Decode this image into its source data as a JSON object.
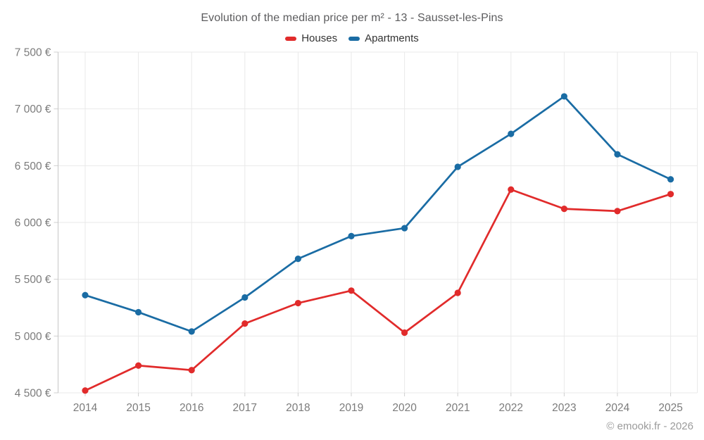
{
  "watermark": "© emooki.fr - 2026",
  "chart_data": {
    "type": "line",
    "title": "Evolution of the median price per m² - 13 - Sausset-les-Pins",
    "x": [
      "2014",
      "2015",
      "2016",
      "2017",
      "2018",
      "2019",
      "2020",
      "2021",
      "2022",
      "2023",
      "2024",
      "2025"
    ],
    "series": [
      {
        "name": "Houses",
        "color": "#e12b2b",
        "values": [
          4520,
          4740,
          4700,
          5110,
          5290,
          5400,
          5030,
          5380,
          6290,
          6120,
          6100,
          6250
        ]
      },
      {
        "name": "Apartments",
        "color": "#1a6ca4",
        "values": [
          5360,
          5210,
          5040,
          5340,
          5680,
          5880,
          5950,
          6490,
          6780,
          7110,
          6600,
          6380
        ]
      }
    ],
    "xlabel": "",
    "ylabel": "",
    "ylim": [
      4500,
      7500
    ],
    "ytick_step": 500,
    "ytick_suffix": "€",
    "grid": true,
    "legend_position": "top"
  }
}
